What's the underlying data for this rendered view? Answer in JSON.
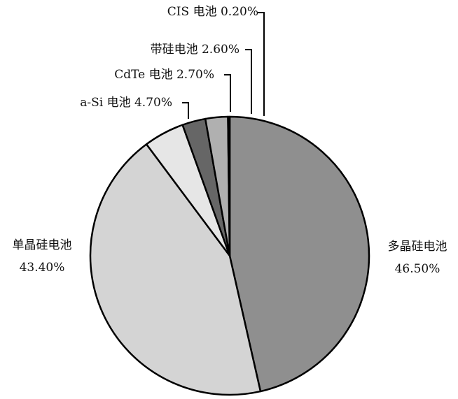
{
  "chart_data": {
    "type": "pie",
    "title": "",
    "slices": [
      {
        "label": "多晶硅电池",
        "value": 46.5,
        "value_text": "46.50%",
        "color": "#8f8f8f"
      },
      {
        "label": "单晶硅电池",
        "value": 43.4,
        "value_text": "43.40%",
        "color": "#d4d4d4"
      },
      {
        "label": "a-Si 电池",
        "value": 4.7,
        "value_text": "4.70%",
        "color": "#e6e6e6"
      },
      {
        "label": "CdTe 电池",
        "value": 2.7,
        "value_text": "2.70%",
        "color": "#666666"
      },
      {
        "label": "带硅电池",
        "value": 2.6,
        "value_text": "2.60%",
        "color": "#b0b0b0"
      },
      {
        "label": "CIS 电池",
        "value": 0.2,
        "value_text": "0.20%",
        "color": "#111111"
      }
    ],
    "start": "12 o'clock",
    "direction": "clockwise",
    "stroke_color": "#000000"
  }
}
